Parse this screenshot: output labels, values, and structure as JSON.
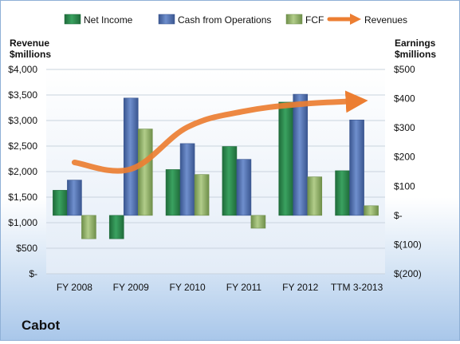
{
  "chart_data": {
    "type": "bar",
    "title": "Cabot",
    "categories": [
      "FY 2008",
      "FY 2009",
      "FY 2010",
      "FY 2011",
      "FY 2012",
      "TTM 3-2013"
    ],
    "left_axis": {
      "label_line1": "Revenue",
      "label_line2": "$millions",
      "ylim": [
        0,
        4000
      ],
      "ticks": [
        {
          "v": 0,
          "label": "$-"
        },
        {
          "v": 500,
          "label": "$500"
        },
        {
          "v": 1000,
          "label": "$1,000"
        },
        {
          "v": 1500,
          "label": "$1,500"
        },
        {
          "v": 2000,
          "label": "$2,000"
        },
        {
          "v": 2500,
          "label": "$2,500"
        },
        {
          "v": 3000,
          "label": "$3,000"
        },
        {
          "v": 3500,
          "label": "$3,500"
        },
        {
          "v": 4000,
          "label": "$4,000"
        }
      ]
    },
    "right_axis": {
      "label_line1": "Earnings",
      "label_line2": "$millions",
      "ylim": [
        -200,
        500
      ],
      "ticks": [
        {
          "v": -200,
          "label": "$(200)"
        },
        {
          "v": -100,
          "label": "$(100)"
        },
        {
          "v": 0,
          "label": "$-"
        },
        {
          "v": 100,
          "label": "$100"
        },
        {
          "v": 200,
          "label": "$200"
        },
        {
          "v": 300,
          "label": "$300"
        },
        {
          "v": 400,
          "label": "$400"
        },
        {
          "v": 500,
          "label": "$500"
        }
      ]
    },
    "series": [
      {
        "name": "Net Income",
        "type": "bar",
        "axis": "right",
        "color": "#2e8b4e",
        "values": [
          86,
          -80,
          157,
          236,
          388,
          153
        ]
      },
      {
        "name": "Cash from Operations",
        "type": "bar",
        "axis": "right",
        "color": "#4f6fae",
        "values": [
          121,
          402,
          246,
          192,
          415,
          327
        ]
      },
      {
        "name": "FCF",
        "type": "bar",
        "axis": "right",
        "color": "#92b36a",
        "values": [
          -80,
          296,
          140,
          -44,
          132,
          33
        ]
      },
      {
        "name": "Revenues",
        "type": "line",
        "axis": "left",
        "color": "#ec7e32",
        "values": [
          2180,
          2050,
          2870,
          3180,
          3320,
          3380
        ]
      }
    ],
    "legend_position": "top",
    "grid": true
  }
}
